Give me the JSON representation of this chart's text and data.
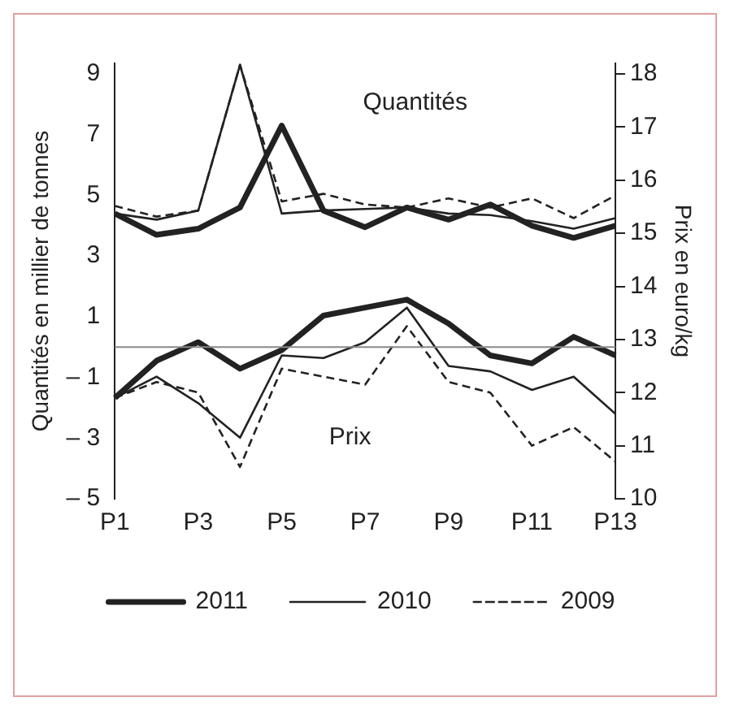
{
  "chart_data": {
    "type": "line",
    "ylabel": "Quantités en millier de tonnes",
    "y2label": "Prix en euro/kg",
    "annotations": [
      "Quantités",
      "Prix"
    ],
    "categories": [
      "P1",
      null,
      "P3",
      null,
      "P5",
      null,
      "P7",
      null,
      "P9",
      null,
      "P11",
      null,
      "P13"
    ],
    "series": [
      {
        "name": "2011",
        "color": "#222222",
        "line_style": "solid",
        "values": [
          4.4,
          3.7,
          3.9,
          4.6,
          7.3,
          4.5,
          3.95,
          4.6,
          4.2,
          4.7,
          4.0,
          3.6,
          4.0
        ]
      },
      {
        "name": "2010",
        "color": "#222222",
        "line_style": "solid",
        "values": [
          4.4,
          4.2,
          4.5,
          9.3,
          4.4,
          4.5,
          4.55,
          4.6,
          4.4,
          4.35,
          4.15,
          3.9,
          4.25
        ]
      },
      {
        "name": "2009",
        "color": "#222222",
        "line_style": "dashed",
        "values": [
          4.65,
          4.3,
          4.5,
          9.3,
          4.8,
          5.05,
          4.7,
          4.6,
          4.9,
          4.6,
          4.9,
          4.25,
          5.0
        ]
      },
      {
        "color": "#222222",
        "line_style": "solid",
        "axis": "y2",
        "values": [
          11.9,
          12.6,
          12.95,
          12.45,
          12.8,
          13.45,
          13.6,
          13.75,
          13.3,
          12.7,
          12.55,
          13.05,
          12.7
        ]
      },
      {
        "color": "#222222",
        "line_style": "solid",
        "axis": "y2",
        "values": [
          11.9,
          12.3,
          11.8,
          11.15,
          12.7,
          12.65,
          12.95,
          13.6,
          12.5,
          12.4,
          12.05,
          12.3,
          11.6
        ]
      },
      {
        "color": "#222222",
        "line_style": "dashed",
        "axis": "y2",
        "values": [
          11.9,
          12.2,
          12.0,
          10.6,
          12.45,
          12.3,
          12.15,
          13.25,
          12.2,
          12.0,
          11.0,
          11.35,
          10.7
        ]
      }
    ],
    "ylim": [
      -5,
      9.35
    ],
    "yticks": [
      {
        "value": -5,
        "label": "– 5"
      },
      {
        "value": -3,
        "label": "– 3"
      },
      {
        "value": -1,
        "label": "– 1"
      },
      1,
      3,
      5,
      7,
      9
    ],
    "y2lim": [
      10,
      18.2
    ],
    "y2ticks": [
      10,
      11,
      12,
      13,
      14,
      15,
      16,
      17,
      18
    ],
    "ref_lines": [
      {
        "axis": "y",
        "value": 0,
        "color": "#888888"
      }
    ],
    "grid": false,
    "legend": "bottom",
    "marker": "none"
  }
}
